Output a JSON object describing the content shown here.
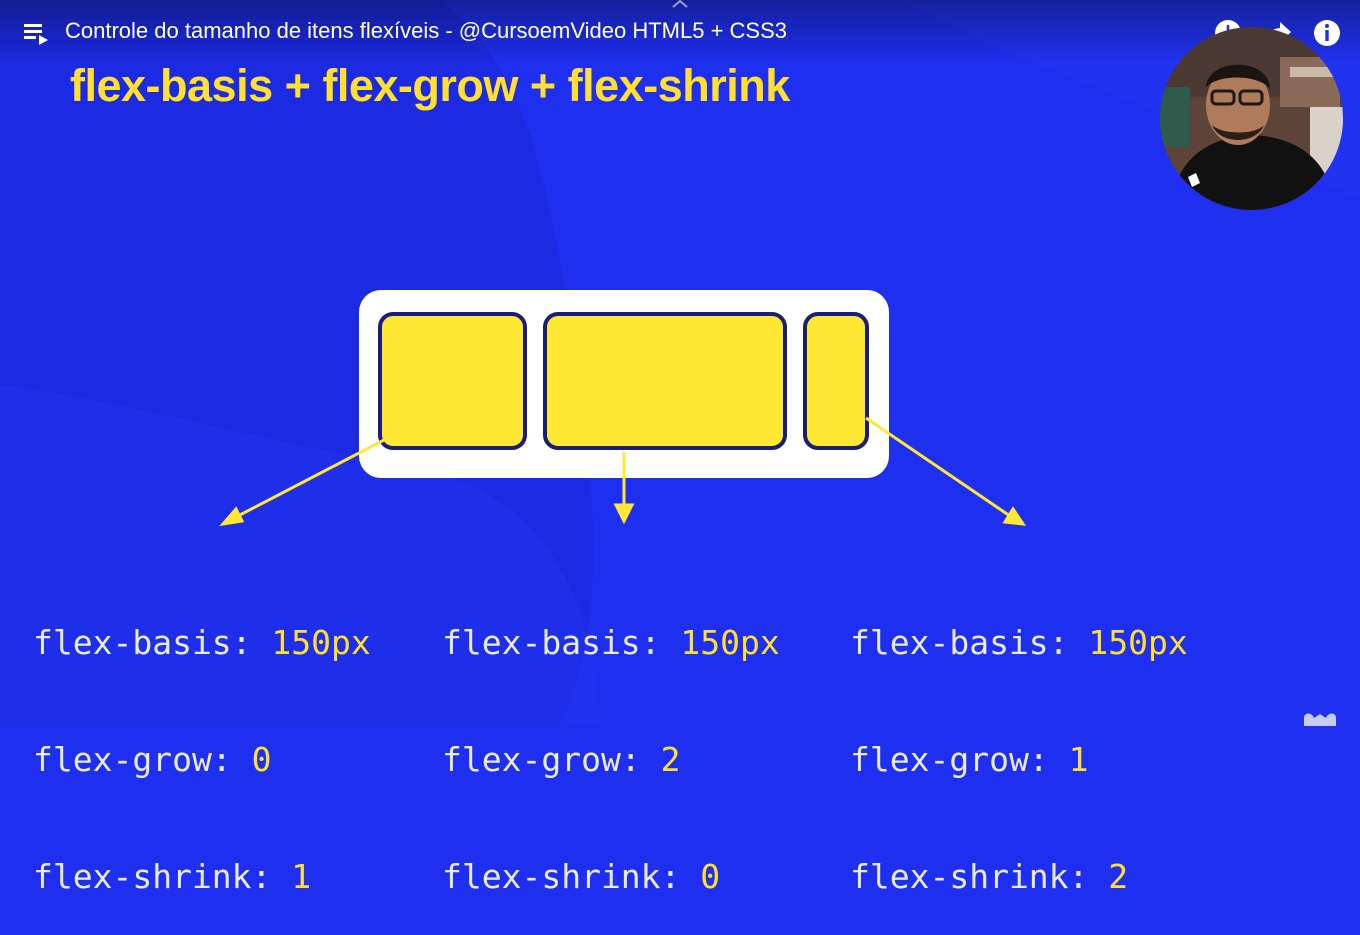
{
  "header": {
    "video_title": "Controle do tamanho de itens flexíveis - @CursoemVideo HTML5 + CSS3",
    "icons": [
      "playlist-icon",
      "watch-later-icon",
      "share-icon",
      "info-icon",
      "chevron-up-icon"
    ]
  },
  "slide": {
    "heading": "flex-basis + flex-grow + flex-shrink",
    "items": [
      {
        "basis_prop": "flex-basis:",
        "basis_val": "150px",
        "grow_prop": "flex-grow:",
        "grow_val": "0",
        "shrink_prop": "flex-shrink:",
        "shrink_val": "1"
      },
      {
        "basis_prop": "flex-basis:",
        "basis_val": "150px",
        "grow_prop": "flex-grow:",
        "grow_val": "2",
        "shrink_prop": "flex-shrink:",
        "shrink_val": "0"
      },
      {
        "basis_prop": "flex-basis:",
        "basis_val": "150px",
        "grow_prop": "flex-grow:",
        "grow_val": "1",
        "shrink_prop": "flex-shrink:",
        "shrink_val": "2"
      }
    ]
  },
  "colors": {
    "background": "#1f2ff0",
    "accent_yellow": "#ffe02e",
    "item_fill": "#ffe834",
    "item_border": "#1a1d7a",
    "text": "#e9ecf7"
  }
}
